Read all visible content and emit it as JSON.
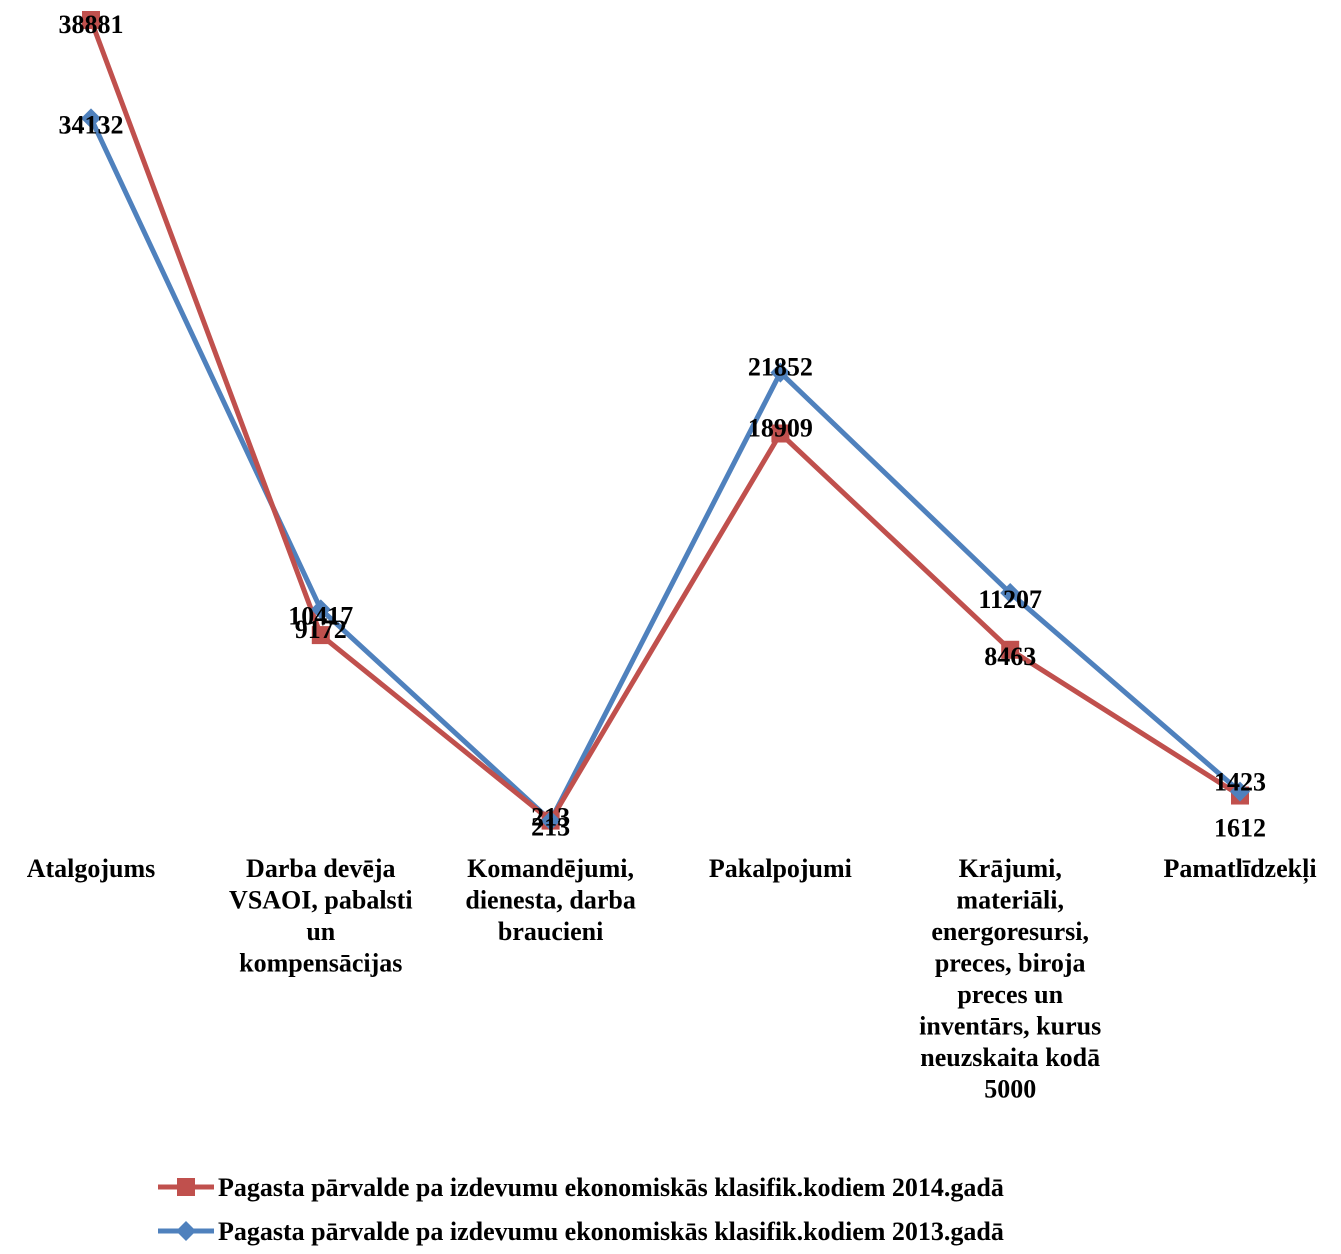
{
  "chart_data": {
    "type": "line",
    "title": "",
    "xlabel": "",
    "ylabel": "",
    "categories": [
      [
        "Atalgojums"
      ],
      [
        "Darba devēja",
        "VSAOI, pabalsti",
        "un",
        "kompensācijas"
      ],
      [
        "Komandējumi,",
        "dienesta, darba",
        "braucieni"
      ],
      [
        "Pakalpojumi"
      ],
      [
        "Krājumi,",
        "materiāli,",
        "energoresursi,",
        "preces, biroja",
        "preces un",
        "inventārs, kurus",
        "neuzskaita kodā",
        "5000"
      ],
      [
        "Pamatlīdzekļi"
      ]
    ],
    "series": [
      {
        "name": "Pagasta pārvalde pa izdevumu ekonomiskās klasifik.kodiem 2014.gadā",
        "color": "#C0504D",
        "marker": "square",
        "values": [
          38881,
          9172,
          213,
          18909,
          8463,
          1423
        ],
        "labels": [
          "38881",
          "9172",
          "213",
          "18909",
          "8463",
          "1423"
        ]
      },
      {
        "name": "Pagasta pārvalde pa izdevumu ekonomiskās klasifik.kodiem 2013.gadā",
        "color": "#4F81BD",
        "marker": "diamond",
        "values": [
          34132,
          10417,
          213,
          21852,
          11207,
          1612
        ],
        "labels": [
          "34132",
          "10417",
          "213",
          "21852",
          "11207",
          "1612"
        ]
      }
    ],
    "legend": "bottom",
    "grid": false
  }
}
